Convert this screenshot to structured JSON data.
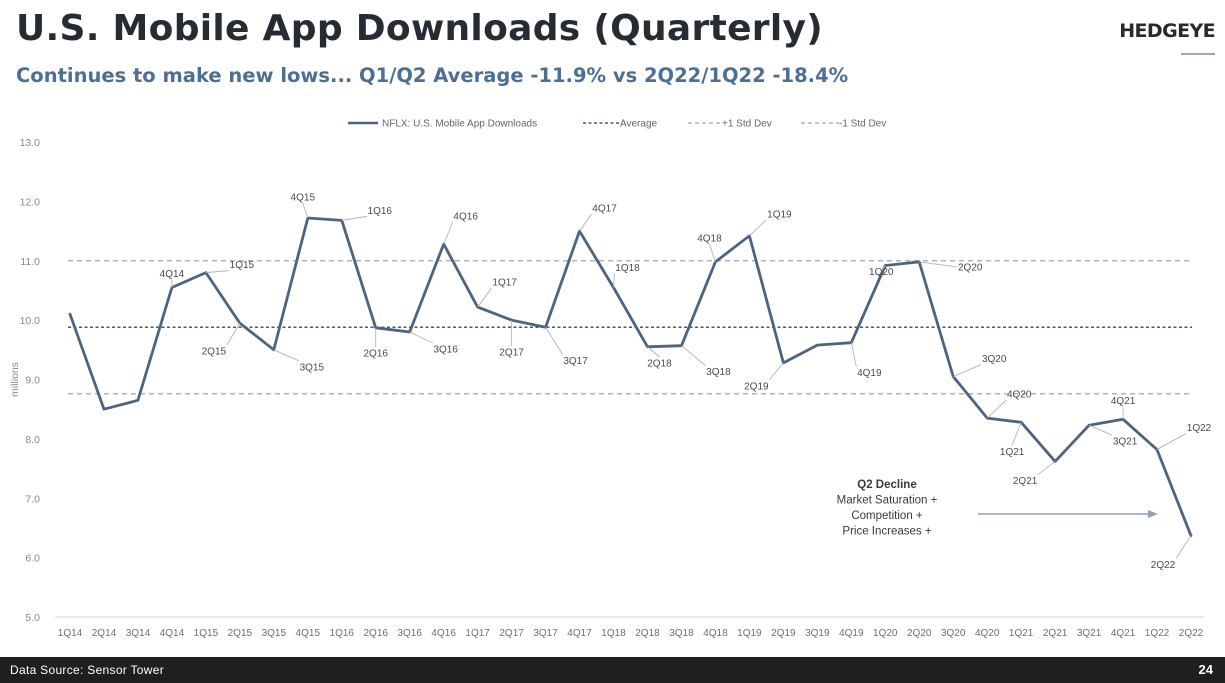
{
  "header": {
    "title": "U.S. Mobile App Downloads (Quarterly)",
    "subtitle": "Continues to make new lows... Q1/Q2 Average -11.9% vs 2Q22/1Q22 -18.4%",
    "logo_text": "HEDGEYE"
  },
  "footer": {
    "source": "Data Source: Sensor Tower",
    "page_number": "24"
  },
  "colors": {
    "series": "#4d6480",
    "average": "#3e5a7e",
    "std_dev": "#a6b4c4",
    "subtitle": "#4d6f94",
    "annotation_arrow": "#8ea3bb"
  },
  "chart_data": {
    "type": "line",
    "title": "",
    "xlabel": "",
    "ylabel": "millions",
    "ylim": [
      5.0,
      13.0
    ],
    "yticks": [
      "5.0",
      "6.0",
      "7.0",
      "8.0",
      "9.0",
      "10.0",
      "11.0",
      "12.0",
      "13.0"
    ],
    "grid": false,
    "legend_position": "top-center",
    "categories": [
      "1Q14",
      "2Q14",
      "3Q14",
      "4Q14",
      "1Q15",
      "2Q15",
      "3Q15",
      "4Q15",
      "1Q16",
      "2Q16",
      "3Q16",
      "4Q16",
      "1Q17",
      "2Q17",
      "3Q17",
      "4Q17",
      "1Q18",
      "2Q18",
      "3Q18",
      "4Q18",
      "1Q19",
      "2Q19",
      "3Q19",
      "4Q19",
      "1Q20",
      "2Q20",
      "3Q20",
      "4Q20",
      "1Q21",
      "2Q21",
      "3Q21",
      "4Q21",
      "1Q22",
      "2Q22"
    ],
    "series": [
      {
        "name": "NFLX: U.S. Mobile App Downloads",
        "values": [
          10.1,
          8.5,
          8.65,
          10.55,
          10.8,
          9.95,
          9.5,
          11.72,
          11.68,
          9.87,
          9.8,
          11.28,
          10.22,
          10.0,
          9.88,
          11.5,
          10.55,
          9.55,
          9.57,
          10.98,
          11.42,
          9.28,
          9.58,
          9.62,
          10.92,
          10.98,
          9.05,
          8.35,
          8.28,
          7.62,
          8.23,
          8.33,
          7.82,
          6.37
        ]
      }
    ],
    "reference_lines": [
      {
        "name": "Average",
        "value": 9.88
      },
      {
        "name": "+1 Std Dev",
        "value": 11.0
      },
      {
        "name": "-1 Std Dev",
        "value": 8.76
      }
    ],
    "point_labels": [
      "",
      "",
      "",
      "4Q14",
      "1Q15",
      "2Q15",
      "3Q15",
      "4Q15",
      "1Q16",
      "2Q16",
      "3Q16",
      "4Q16",
      "1Q17",
      "2Q17",
      "3Q17",
      "4Q17",
      "1Q18",
      "2Q18",
      "3Q18",
      "4Q18",
      "1Q19",
      "2Q19",
      "",
      "4Q19",
      "1Q20",
      "2Q20",
      "3Q20",
      "4Q20",
      "1Q21",
      "2Q21",
      "3Q21",
      "4Q21",
      "1Q22",
      "2Q22"
    ],
    "annotation": {
      "lines": [
        "Q2 Decline",
        "Market Saturation +",
        "Competition +",
        "Price Increases +"
      ]
    }
  }
}
